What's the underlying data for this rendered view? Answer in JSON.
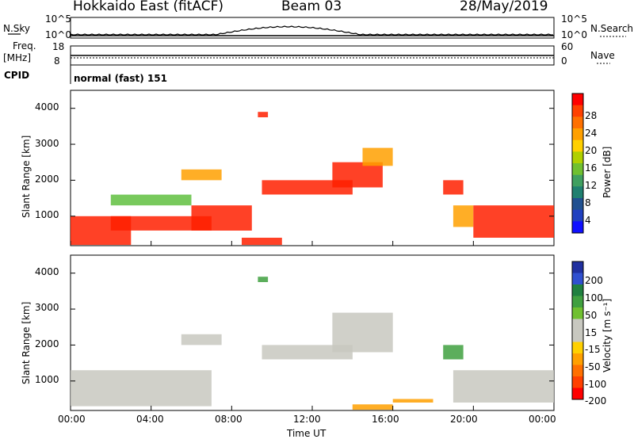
{
  "header": {
    "station": "Hokkaido East (fitACF)",
    "beam": "Beam 03",
    "date": "28/May/2019"
  },
  "top_panels": {
    "nsky_label": "N.Sky",
    "nsky_ticks": [
      "10^5",
      "10^0"
    ],
    "nsearch_label": "N.Search",
    "nsearch_ticks": [
      "10^5",
      "10^0"
    ],
    "freq_label_1": "Freq.",
    "freq_label_2": "[MHz]",
    "freq_ticks": [
      "18",
      "8"
    ],
    "nave_label": "Nave",
    "nave_ticks": [
      "60",
      "0"
    ],
    "cpid_label": "CPID",
    "cpid_text": "normal (fast) 151"
  },
  "chart_data": [
    {
      "type": "heatmap",
      "name": "power",
      "xlabel": "",
      "ylabel": "Slant Range [km]",
      "y_ticks": [
        "4000",
        "3000",
        "2000",
        "1000"
      ],
      "colorbar_label": "Power [dB]",
      "colorbar_ticks": [
        "28",
        "24",
        "20",
        "16",
        "12",
        "8",
        "4"
      ],
      "colorbar_colors": [
        "#ff0000",
        "#ff4000",
        "#ff7000",
        "#ffa000",
        "#ffd000",
        "#b0d000",
        "#70c030",
        "#40a060",
        "#208070",
        "#205090",
        "#2040c0",
        "#1010ff"
      ],
      "colors": {
        "high": "#ff2000",
        "mid": "#ffa000",
        "low": "#60c040"
      },
      "echo_regions": [
        {
          "t0": 0.0,
          "t1": 3.0,
          "r0": 200,
          "r1": 1000,
          "level": "high"
        },
        {
          "t0": 2.0,
          "t1": 7.0,
          "r0": 600,
          "r1": 1000,
          "level": "high"
        },
        {
          "t0": 6.0,
          "t1": 9.0,
          "r0": 600,
          "r1": 1300,
          "level": "high"
        },
        {
          "t0": 2.0,
          "t1": 6.0,
          "r0": 1300,
          "r1": 1600,
          "level": "low"
        },
        {
          "t0": 5.5,
          "t1": 7.5,
          "r0": 2000,
          "r1": 2300,
          "level": "mid"
        },
        {
          "t0": 9.5,
          "t1": 14.0,
          "r0": 1600,
          "r1": 2000,
          "level": "high"
        },
        {
          "t0": 13.0,
          "t1": 15.5,
          "r0": 1800,
          "r1": 2500,
          "level": "high"
        },
        {
          "t0": 14.5,
          "t1": 16.0,
          "r0": 2400,
          "r1": 2900,
          "level": "mid"
        },
        {
          "t0": 8.5,
          "t1": 10.5,
          "r0": 200,
          "r1": 400,
          "level": "high"
        },
        {
          "t0": 9.3,
          "t1": 9.8,
          "r0": 3750,
          "r1": 3900,
          "level": "high"
        },
        {
          "t0": 18.5,
          "t1": 19.5,
          "r0": 1600,
          "r1": 2000,
          "level": "high"
        },
        {
          "t0": 19.0,
          "t1": 20.0,
          "r0": 700,
          "r1": 1300,
          "level": "mid"
        },
        {
          "t0": 20.0,
          "t1": 24.0,
          "r0": 400,
          "r1": 1300,
          "level": "high"
        }
      ]
    },
    {
      "type": "heatmap",
      "name": "velocity",
      "xlabel": "Time UT",
      "ylabel": "Slant Range [km]",
      "y_ticks": [
        "4000",
        "3000",
        "2000",
        "1000"
      ],
      "x_ticks": [
        "00:00",
        "04:00",
        "08:00",
        "12:00",
        "16:00",
        "20:00",
        "00:00"
      ],
      "colorbar_label": "Velocity [m s⁻¹]",
      "colorbar_ticks": [
        "200",
        "100",
        "50",
        "15",
        "-15",
        "-50",
        "-100",
        "-200"
      ],
      "colorbar_colors": [
        "#2030a0",
        "#3050d0",
        "#208040",
        "#40a040",
        "#70c030",
        "#c8c8c0",
        "#c8c8c0",
        "#ffd000",
        "#ffa000",
        "#ff7000",
        "#ff4000",
        "#ff0000"
      ],
      "colors": {
        "ground": "#c8c8c0",
        "neg": "#ffa000",
        "pos": "#40a040"
      },
      "echo_regions": [
        {
          "t0": 0.0,
          "t1": 7.0,
          "r0": 300,
          "r1": 1300,
          "level": "ground"
        },
        {
          "t0": 5.5,
          "t1": 7.5,
          "r0": 2000,
          "r1": 2300,
          "level": "ground"
        },
        {
          "t0": 9.5,
          "t1": 14.0,
          "r0": 1600,
          "r1": 2000,
          "level": "ground"
        },
        {
          "t0": 13.0,
          "t1": 16.0,
          "r0": 1800,
          "r1": 2900,
          "level": "ground"
        },
        {
          "t0": 9.3,
          "t1": 9.8,
          "r0": 3750,
          "r1": 3900,
          "level": "pos"
        },
        {
          "t0": 18.5,
          "t1": 19.5,
          "r0": 1600,
          "r1": 2000,
          "level": "pos"
        },
        {
          "t0": 19.0,
          "t1": 24.0,
          "r0": 400,
          "r1": 1300,
          "level": "ground"
        },
        {
          "t0": 14.0,
          "t1": 16.0,
          "r0": 200,
          "r1": 350,
          "level": "neg"
        },
        {
          "t0": 16.0,
          "t1": 18.0,
          "r0": 400,
          "r1": 500,
          "level": "neg"
        }
      ]
    }
  ]
}
